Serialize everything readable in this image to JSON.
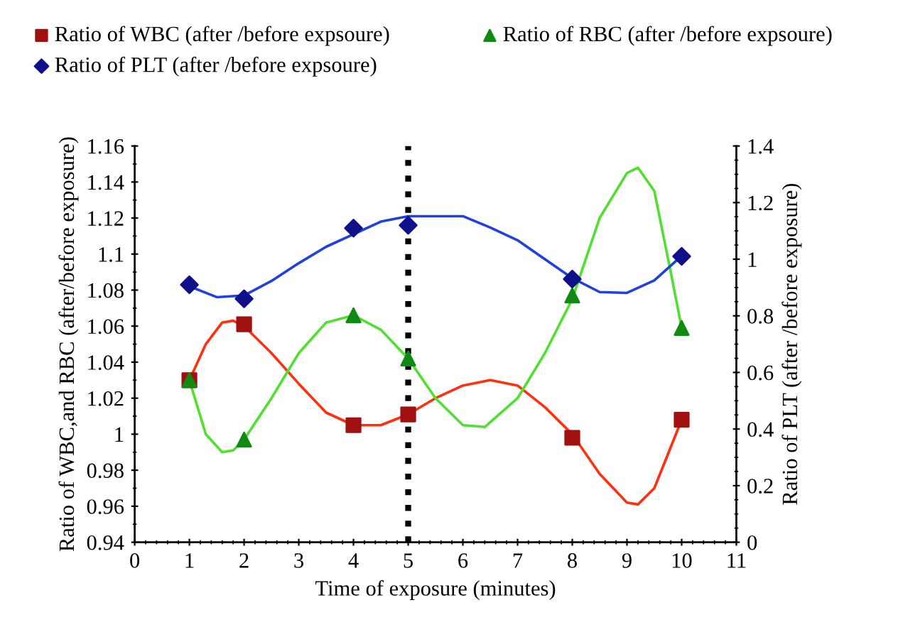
{
  "chart_data": {
    "type": "scatter",
    "xlabel": "Time of exposure (minutes)",
    "ylabel": "Ratio of WBC,and RBC (after/before exposure)",
    "y2label": "Ratio of PLT (after /before exposure)",
    "xlim": [
      0,
      11
    ],
    "xticks": [
      0,
      1,
      2,
      3,
      4,
      5,
      6,
      7,
      8,
      9,
      10,
      11
    ],
    "ylim": [
      0.94,
      1.16
    ],
    "yticks": [
      0.94,
      0.96,
      0.98,
      1,
      1.02,
      1.04,
      1.06,
      1.08,
      1.1,
      1.12,
      1.14,
      1.16
    ],
    "y2lim": [
      0,
      1.4
    ],
    "y2ticks": [
      0,
      0.2,
      0.4,
      0.6,
      0.8,
      1,
      1.2,
      1.4
    ],
    "legend": "top",
    "grid": false,
    "ref_lines": [
      {
        "axis": "x",
        "value": 5,
        "color": "#000000",
        "line_style": "dotted"
      }
    ],
    "series": [
      {
        "type": "line",
        "color": "#ff3010",
        "marker": "none",
        "x": [
          1,
          1.3,
          1.6,
          1.8,
          2,
          2.5,
          3,
          3.5,
          4,
          4.5,
          5,
          5.5,
          6,
          6.5,
          7,
          7.5,
          8,
          8.5,
          9,
          9.2,
          9.5,
          10
        ],
        "values": [
          1.03,
          1.05,
          1.062,
          1.063,
          1.06,
          1.045,
          1.028,
          1.012,
          1.005,
          1.005,
          1.011,
          1.02,
          1.027,
          1.03,
          1.027,
          1.015,
          1.0,
          0.978,
          0.962,
          0.961,
          0.97,
          1.008
        ]
      },
      {
        "type": "line",
        "color": "#50e030",
        "marker": "none",
        "x": [
          1,
          1.3,
          1.6,
          1.8,
          2,
          2.5,
          3,
          3.5,
          4,
          4.5,
          5,
          5.5,
          6,
          6.4,
          7,
          7.5,
          8,
          8.5,
          9,
          9.2,
          9.5,
          9.8,
          10
        ],
        "values": [
          1.03,
          1.0,
          0.99,
          0.991,
          0.997,
          1.02,
          1.045,
          1.062,
          1.066,
          1.058,
          1.042,
          1.02,
          1.005,
          1.004,
          1.02,
          1.045,
          1.075,
          1.12,
          1.145,
          1.148,
          1.135,
          1.09,
          1.059
        ]
      },
      {
        "type": "line",
        "color": "#2040e0",
        "marker": "none",
        "axis": "y2",
        "x": [
          1,
          1.5,
          2,
          2.5,
          3,
          3.5,
          4,
          4.5,
          5,
          5.5,
          6,
          6.5,
          7,
          7.5,
          8,
          8.5,
          9,
          9.5,
          10
        ],
        "values": [
          0.904,
          0.866,
          0.872,
          0.923,
          0.986,
          1.044,
          1.088,
          1.133,
          1.152,
          1.152,
          1.152,
          1.112,
          1.067,
          1.0,
          0.933,
          0.884,
          0.881,
          0.925,
          1.012
        ]
      },
      {
        "name": "Ratio of WBC (after /before expsoure)",
        "color": "#a01010",
        "marker": "square",
        "x": [
          1,
          2,
          4,
          5,
          8,
          10
        ],
        "values": [
          1.03,
          1.061,
          1.005,
          1.011,
          0.998,
          1.008
        ]
      },
      {
        "name": "Ratio of RBC (after /before expsoure)",
        "color": "#108a10",
        "marker": "triangle",
        "x": [
          1,
          2,
          4,
          5,
          8,
          10
        ],
        "values": [
          1.03,
          0.997,
          1.066,
          1.042,
          1.077,
          1.059
        ]
      },
      {
        "name": "Ratio of PLT (after /before expsoure)",
        "color": "#10108a",
        "marker": "diamond",
        "axis": "y2",
        "x": [
          1,
          2,
          4,
          5,
          8,
          10
        ],
        "values": [
          0.91,
          0.86,
          1.11,
          1.12,
          0.93,
          1.01
        ]
      }
    ]
  }
}
